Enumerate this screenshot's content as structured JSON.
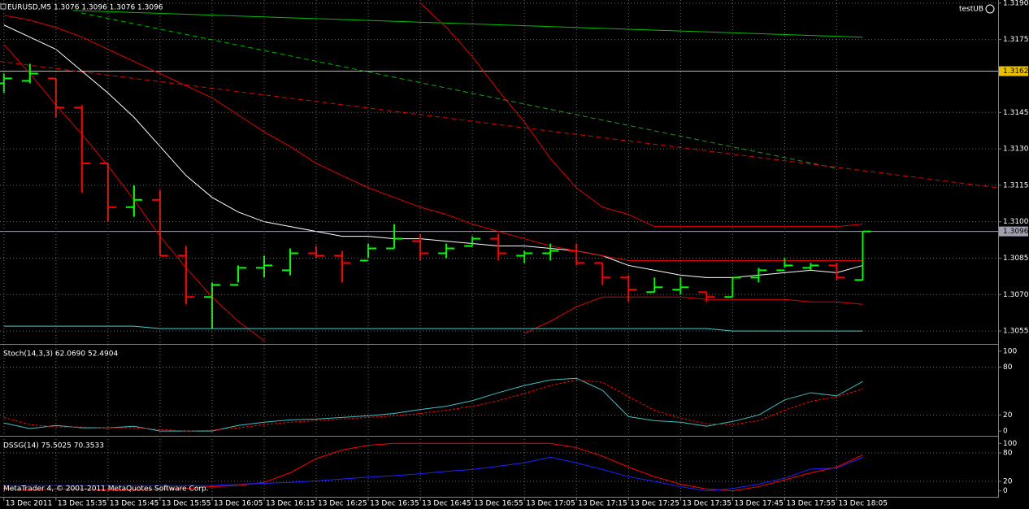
{
  "chart_data": [
    {
      "type": "ohlc",
      "title": "EURUSD,M5  1.3076 1.3096 1.3076 1.3096",
      "label": "testUB",
      "categories": [
        "13 Dec 2011",
        null,
        "13 Dec 15:35",
        null,
        "13 Dec 15:45",
        null,
        "13 Dec 15:55",
        null,
        "13 Dec 16:05",
        null,
        "13 Dec 16:15",
        null,
        "13 Dec 16:25",
        null,
        "13 Dec 16:35",
        null,
        "13 Dec 16:45",
        null,
        "13 Dec 16:55",
        null,
        "13 Dec 17:05",
        null,
        "13 Dec 17:15",
        null,
        "13 Dec 17:25",
        null,
        "13 Dec 17:35",
        null,
        "13 Dec 17:45",
        null,
        "13 Dec 17:55",
        null,
        "13 Dec 18:05",
        null
      ],
      "open": [
        1.3157,
        1.3158,
        1.3159,
        1.3147,
        1.3124,
        1.3106,
        1.3109,
        1.3086,
        1.3069,
        1.3074,
        1.3081,
        1.308,
        1.3087,
        1.3086,
        1.3084,
        1.3089,
        1.3092,
        1.3087,
        1.309,
        1.3093,
        1.3086,
        1.3087,
        1.3088,
        1.3083,
        1.3077,
        1.3071,
        1.3072,
        1.3071,
        1.3069,
        1.3077,
        1.308,
        1.3081,
        1.3082,
        1.3076
      ],
      "high": [
        1.3161,
        1.3165,
        1.3159,
        1.3148,
        1.3124,
        1.3115,
        1.3113,
        1.309,
        1.3075,
        1.3082,
        1.3086,
        1.3089,
        1.309,
        1.3088,
        1.3091,
        1.3099,
        1.3095,
        1.3091,
        1.3094,
        1.3095,
        1.3088,
        1.3091,
        1.3091,
        1.3083,
        1.3078,
        1.3077,
        1.3077,
        1.3071,
        1.3077,
        1.3081,
        1.3085,
        1.3083,
        1.3083,
        1.3096
      ],
      "low": [
        1.3153,
        1.3157,
        1.3143,
        1.3112,
        1.31,
        1.3102,
        1.3086,
        1.3066,
        1.3056,
        1.3075,
        1.3077,
        1.3078,
        1.3085,
        1.3075,
        1.3085,
        1.3089,
        1.3084,
        1.3085,
        1.309,
        1.3084,
        1.3083,
        1.3084,
        1.3082,
        1.3074,
        1.3067,
        1.3071,
        1.307,
        1.3067,
        1.3069,
        1.3075,
        1.3081,
        1.308,
        1.3076,
        1.3076
      ],
      "close": [
        1.3159,
        1.3161,
        1.3147,
        1.3124,
        1.3106,
        1.3109,
        1.3086,
        1.3069,
        1.3074,
        1.3081,
        1.3082,
        1.3087,
        1.3086,
        1.3083,
        1.3089,
        1.3093,
        1.3087,
        1.3089,
        1.3093,
        1.3087,
        1.3087,
        1.3088,
        1.3083,
        1.3077,
        1.3072,
        1.3073,
        1.3073,
        1.3069,
        1.3077,
        1.308,
        1.3082,
        1.3082,
        1.3077,
        1.3096
      ],
      "up_color": "#00ff00",
      "down_color": "#ff0000",
      "series": [
        {
          "color": "#ffffff",
          "values": [
            1.3181,
            1.3176,
            1.3171,
            1.3162,
            1.3153,
            1.3143,
            1.3131,
            1.3119,
            1.311,
            1.3104,
            1.31,
            1.3098,
            1.3096,
            1.3094,
            1.3094,
            1.3093,
            1.3093,
            1.3092,
            1.3091,
            1.309,
            1.309,
            1.3089,
            1.3088,
            1.3086,
            1.3082,
            1.308,
            1.3078,
            1.3077,
            1.3077,
            1.3078,
            1.3079,
            1.308,
            1.3079,
            1.3082
          ]
        },
        {
          "color": "#e00000",
          "values": [
            1.3185,
            1.3183,
            1.318,
            1.3176,
            1.3171,
            1.3166,
            1.3161,
            1.3156,
            1.3151,
            1.3144,
            1.3137,
            1.3131,
            1.3124,
            1.3119,
            1.3114,
            1.311,
            1.3106,
            1.3103,
            1.3099,
            1.3096,
            1.3093,
            1.309,
            1.3088,
            1.3086,
            1.3084,
            1.3084,
            1.3084,
            1.3084,
            1.3084,
            1.3084,
            1.3084,
            1.3084,
            1.3084,
            1.3084
          ]
        },
        {
          "color": "#e00000",
          "values": [
            null,
            null,
            null,
            null,
            null,
            null,
            null,
            null,
            null,
            null,
            null,
            null,
            null,
            null,
            null,
            null,
            1.319,
            1.318,
            1.3168,
            1.3154,
            1.3141,
            1.3126,
            1.3114,
            1.3106,
            1.3103,
            1.3098,
            1.3098,
            1.3098,
            1.3098,
            1.3098,
            1.3098,
            1.3098,
            1.3098,
            1.3099
          ]
        },
        {
          "color": "#e00000",
          "values": [
            1.3173,
            1.3161,
            1.3148,
            1.3136,
            1.3123,
            1.3109,
            1.3094,
            1.3081,
            1.3069,
            1.3059,
            1.3051,
            null,
            null,
            null,
            null,
            null,
            null,
            null,
            null,
            null,
            1.3054,
            1.3059,
            1.3065,
            1.3069,
            1.3069,
            1.3069,
            1.3069,
            1.3068,
            1.3068,
            1.3068,
            1.3068,
            1.3067,
            1.3067,
            1.3066
          ]
        },
        {
          "color": "#40d0d0",
          "values": [
            1.3057,
            1.3057,
            1.3057,
            1.3057,
            1.3057,
            1.3057,
            1.3056,
            1.3056,
            1.3056,
            1.3056,
            1.3056,
            1.3056,
            1.3056,
            1.3056,
            1.3056,
            1.3056,
            1.3056,
            1.3056,
            1.3056,
            1.3056,
            1.3056,
            1.3056,
            1.3056,
            1.3056,
            1.3056,
            1.3056,
            1.3056,
            1.3056,
            1.3055,
            1.3055,
            1.3055,
            1.3055,
            1.3055,
            1.3055
          ]
        }
      ],
      "trendlines": [
        {
          "color": "#00c000",
          "dashed": false,
          "x": [
            2.66,
            33
          ],
          "values": [
            1.3187,
            1.3176
          ]
        },
        {
          "color": "#00b000",
          "dashed": true,
          "x": [
            2.97,
            32
          ],
          "values": [
            1.3186,
            1.3122
          ]
        },
        {
          "color": "#e00000",
          "dashed": true,
          "x": [
            -0.16,
            38.2
          ],
          "values": [
            1.3166,
            1.3114
          ]
        }
      ],
      "hlines": [
        {
          "value": 1.3162,
          "color": "#e8c000",
          "tag_text": "#000000"
        },
        {
          "value": 1.3096,
          "color": "#a0a0b0",
          "tag_text": "#000000"
        }
      ],
      "ylim": [
        1.305,
        1.31913
      ],
      "yticks": [
        {
          "value": 1.319,
          "label": "1.3190"
        },
        1.3175,
        1.3145,
        {
          "value": 1.313,
          "label": "1.3130"
        },
        1.3115,
        {
          "value": 1.31,
          "label": "1.3100"
        },
        1.3085,
        {
          "value": 1.307,
          "label": "1.3070"
        },
        1.3055
      ],
      "grid": true
    },
    {
      "type": "line",
      "title": "Stoch(14,3,3) 62.0690 52.4904",
      "series": [
        {
          "color": "#40c0c0",
          "values": [
            10,
            3,
            7,
            4,
            4,
            6,
            0,
            0,
            0,
            7,
            11,
            14,
            15,
            17,
            19,
            22,
            27,
            31,
            38,
            48,
            57,
            64,
            66,
            51,
            18,
            13,
            11,
            6,
            12,
            20,
            39,
            48,
            44,
            62.069
          ]
        },
        {
          "color": "#ff0000",
          "dashed": true,
          "values": [
            17,
            8,
            5,
            5,
            4,
            4,
            2,
            0,
            1,
            4,
            8,
            11,
            13,
            15,
            17,
            19,
            22,
            26,
            31,
            38,
            47,
            57,
            64,
            61,
            43,
            26,
            16,
            9,
            8,
            13,
            26,
            37,
            43,
            52.4904
          ]
        }
      ],
      "ylim": [
        -5,
        107
      ],
      "yticks": [
        100,
        80,
        20,
        0
      ],
      "levels": [
        80,
        20
      ],
      "grid": false
    },
    {
      "type": "line",
      "title": "DSSG(14) 75.5025 70.3533",
      "series": [
        {
          "color": "#ff0000",
          "values": [
            5,
            2,
            4,
            4,
            2,
            2,
            4,
            5,
            9,
            11,
            18,
            38,
            68,
            86,
            96,
            100,
            100,
            100,
            100,
            100,
            100,
            100,
            91,
            73,
            50,
            30,
            14,
            4,
            0,
            9,
            23,
            38,
            50,
            75.5025
          ]
        },
        {
          "color": "#2020ff",
          "values": [
            11,
            11,
            11,
            11,
            11,
            11,
            11,
            11,
            11,
            14,
            16,
            18,
            21,
            25,
            29,
            32,
            36,
            41,
            45,
            52,
            59,
            71,
            59,
            45,
            30,
            20,
            9,
            0,
            5,
            14,
            27,
            46,
            48,
            70.3533
          ]
        }
      ],
      "ylim": [
        -12.5,
        112.5
      ],
      "yticks": [
        100,
        80,
        20,
        0
      ],
      "levels": [
        80,
        20
      ],
      "grid": false
    }
  ],
  "footer": "MetaTrader 4, © 2001-2011 MetaQuotes Software Corp."
}
